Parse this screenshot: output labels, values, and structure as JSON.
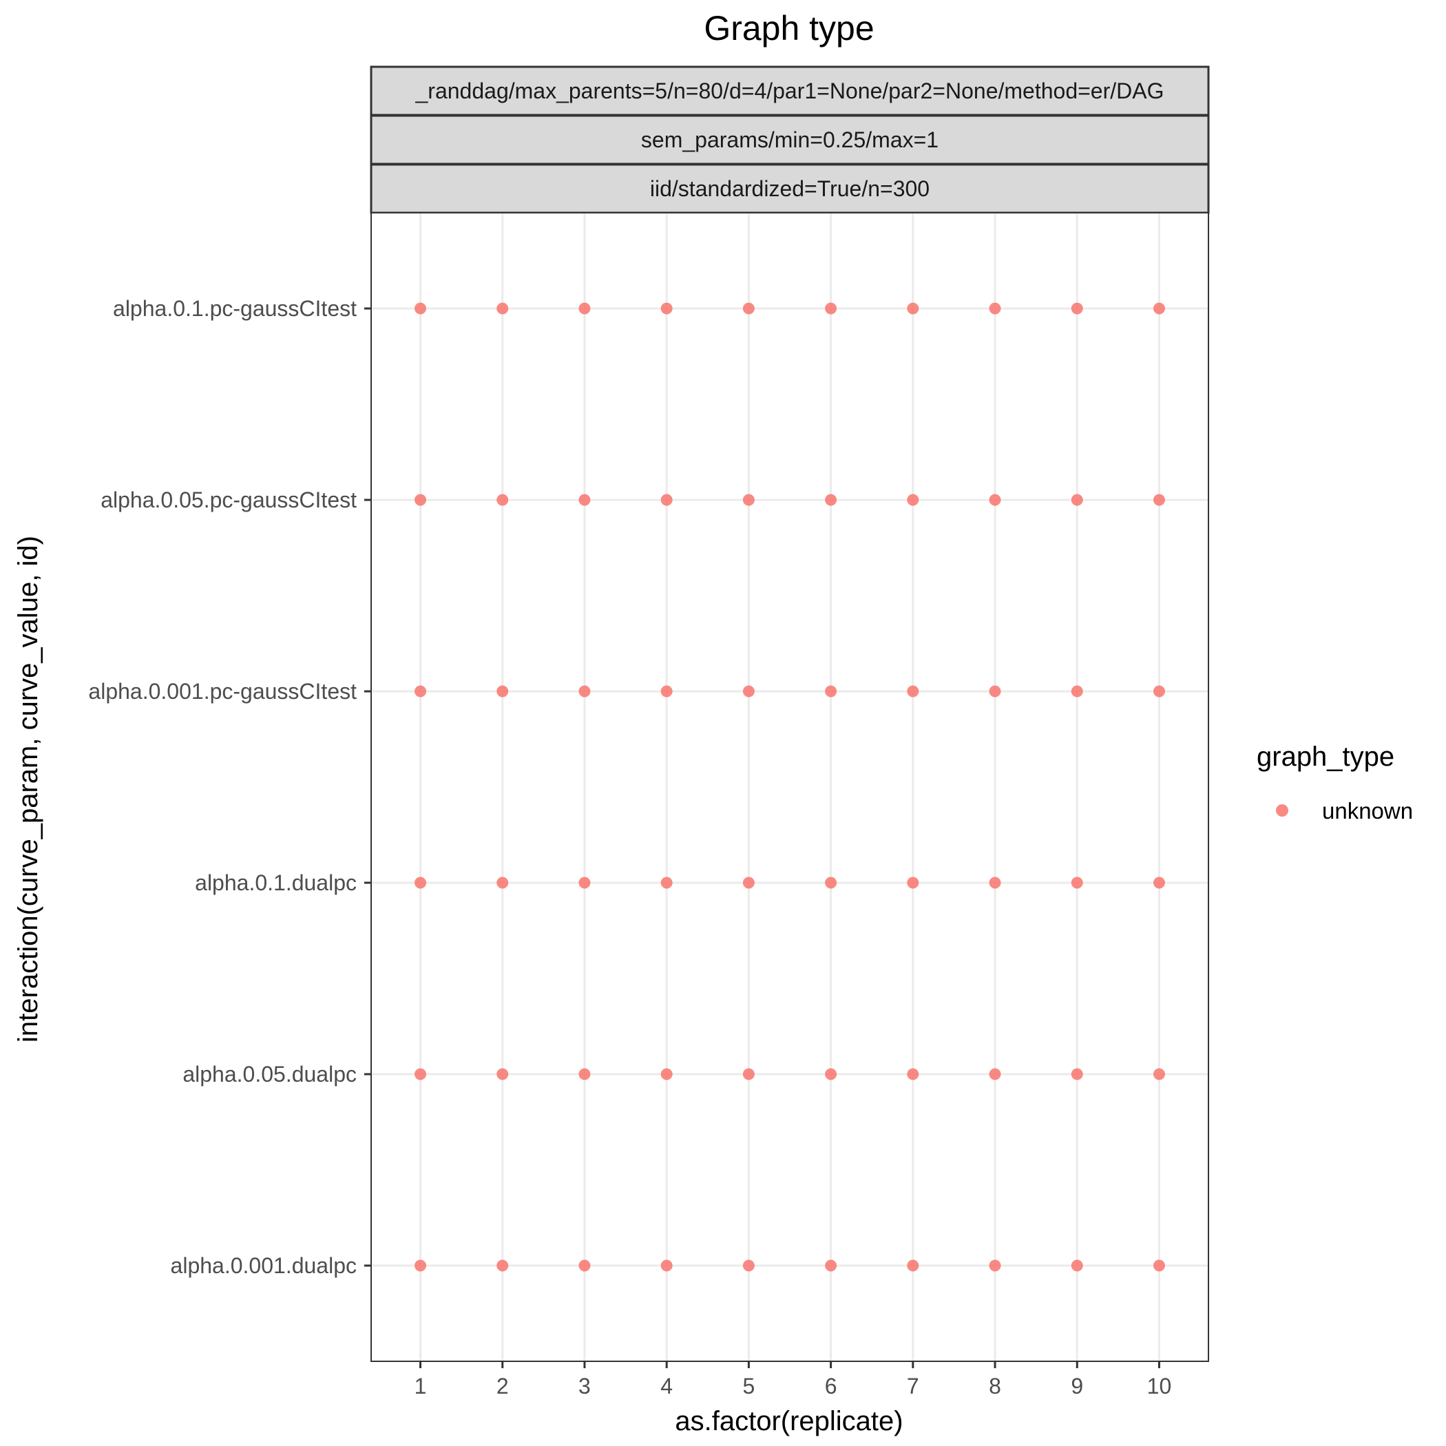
{
  "chart_data": {
    "type": "scatter",
    "title": "Graph type",
    "xlabel": "as.factor(replicate)",
    "ylabel": "interaction(curve_param, curve_value, id)",
    "facet_strips": [
      "_randdag/max_parents=5/n=80/d=4/par1=None/par2=None/method=er/DAG",
      "sem_params/min=0.25/max=1",
      "iid/standardized=True/n=300"
    ],
    "x_categories": [
      "1",
      "2",
      "3",
      "4",
      "5",
      "6",
      "7",
      "8",
      "9",
      "10"
    ],
    "y_categories": [
      "alpha.0.1.pc-gaussCItest",
      "alpha.0.05.pc-gaussCItest",
      "alpha.0.001.pc-gaussCItest",
      "alpha.0.1.dualpc",
      "alpha.0.05.dualpc",
      "alpha.0.001.dualpc"
    ],
    "series": [
      {
        "name": "unknown",
        "color": "#f8766d",
        "points": [
          {
            "x": "1",
            "y": "alpha.0.1.pc-gaussCItest"
          },
          {
            "x": "2",
            "y": "alpha.0.1.pc-gaussCItest"
          },
          {
            "x": "3",
            "y": "alpha.0.1.pc-gaussCItest"
          },
          {
            "x": "4",
            "y": "alpha.0.1.pc-gaussCItest"
          },
          {
            "x": "5",
            "y": "alpha.0.1.pc-gaussCItest"
          },
          {
            "x": "6",
            "y": "alpha.0.1.pc-gaussCItest"
          },
          {
            "x": "7",
            "y": "alpha.0.1.pc-gaussCItest"
          },
          {
            "x": "8",
            "y": "alpha.0.1.pc-gaussCItest"
          },
          {
            "x": "9",
            "y": "alpha.0.1.pc-gaussCItest"
          },
          {
            "x": "10",
            "y": "alpha.0.1.pc-gaussCItest"
          },
          {
            "x": "1",
            "y": "alpha.0.05.pc-gaussCItest"
          },
          {
            "x": "2",
            "y": "alpha.0.05.pc-gaussCItest"
          },
          {
            "x": "3",
            "y": "alpha.0.05.pc-gaussCItest"
          },
          {
            "x": "4",
            "y": "alpha.0.05.pc-gaussCItest"
          },
          {
            "x": "5",
            "y": "alpha.0.05.pc-gaussCItest"
          },
          {
            "x": "6",
            "y": "alpha.0.05.pc-gaussCItest"
          },
          {
            "x": "7",
            "y": "alpha.0.05.pc-gaussCItest"
          },
          {
            "x": "8",
            "y": "alpha.0.05.pc-gaussCItest"
          },
          {
            "x": "9",
            "y": "alpha.0.05.pc-gaussCItest"
          },
          {
            "x": "10",
            "y": "alpha.0.05.pc-gaussCItest"
          },
          {
            "x": "1",
            "y": "alpha.0.001.pc-gaussCItest"
          },
          {
            "x": "2",
            "y": "alpha.0.001.pc-gaussCItest"
          },
          {
            "x": "3",
            "y": "alpha.0.001.pc-gaussCItest"
          },
          {
            "x": "4",
            "y": "alpha.0.001.pc-gaussCItest"
          },
          {
            "x": "5",
            "y": "alpha.0.001.pc-gaussCItest"
          },
          {
            "x": "6",
            "y": "alpha.0.001.pc-gaussCItest"
          },
          {
            "x": "7",
            "y": "alpha.0.001.pc-gaussCItest"
          },
          {
            "x": "8",
            "y": "alpha.0.001.pc-gaussCItest"
          },
          {
            "x": "9",
            "y": "alpha.0.001.pc-gaussCItest"
          },
          {
            "x": "10",
            "y": "alpha.0.001.pc-gaussCItest"
          },
          {
            "x": "1",
            "y": "alpha.0.1.dualpc"
          },
          {
            "x": "2",
            "y": "alpha.0.1.dualpc"
          },
          {
            "x": "3",
            "y": "alpha.0.1.dualpc"
          },
          {
            "x": "4",
            "y": "alpha.0.1.dualpc"
          },
          {
            "x": "5",
            "y": "alpha.0.1.dualpc"
          },
          {
            "x": "6",
            "y": "alpha.0.1.dualpc"
          },
          {
            "x": "7",
            "y": "alpha.0.1.dualpc"
          },
          {
            "x": "8",
            "y": "alpha.0.1.dualpc"
          },
          {
            "x": "9",
            "y": "alpha.0.1.dualpc"
          },
          {
            "x": "10",
            "y": "alpha.0.1.dualpc"
          },
          {
            "x": "1",
            "y": "alpha.0.05.dualpc"
          },
          {
            "x": "2",
            "y": "alpha.0.05.dualpc"
          },
          {
            "x": "3",
            "y": "alpha.0.05.dualpc"
          },
          {
            "x": "4",
            "y": "alpha.0.05.dualpc"
          },
          {
            "x": "5",
            "y": "alpha.0.05.dualpc"
          },
          {
            "x": "6",
            "y": "alpha.0.05.dualpc"
          },
          {
            "x": "7",
            "y": "alpha.0.05.dualpc"
          },
          {
            "x": "8",
            "y": "alpha.0.05.dualpc"
          },
          {
            "x": "9",
            "y": "alpha.0.05.dualpc"
          },
          {
            "x": "10",
            "y": "alpha.0.05.dualpc"
          },
          {
            "x": "1",
            "y": "alpha.0.001.dualpc"
          },
          {
            "x": "2",
            "y": "alpha.0.001.dualpc"
          },
          {
            "x": "3",
            "y": "alpha.0.001.dualpc"
          },
          {
            "x": "4",
            "y": "alpha.0.001.dualpc"
          },
          {
            "x": "5",
            "y": "alpha.0.001.dualpc"
          },
          {
            "x": "6",
            "y": "alpha.0.001.dualpc"
          },
          {
            "x": "7",
            "y": "alpha.0.001.dualpc"
          },
          {
            "x": "8",
            "y": "alpha.0.001.dualpc"
          },
          {
            "x": "9",
            "y": "alpha.0.001.dualpc"
          },
          {
            "x": "10",
            "y": "alpha.0.001.dualpc"
          }
        ]
      }
    ],
    "legend": {
      "title": "graph_type",
      "entries": [
        {
          "label": "unknown",
          "color": "#f8766d"
        }
      ],
      "position": "right"
    },
    "grid": true,
    "colors": {
      "point": "#f8766d",
      "strip_fill": "#d9d9d9",
      "strip_border": "#333333",
      "grid": "#ebebeb",
      "panel_border": "#333333",
      "tick_label": "#4d4d4d",
      "text": "#000000"
    }
  }
}
